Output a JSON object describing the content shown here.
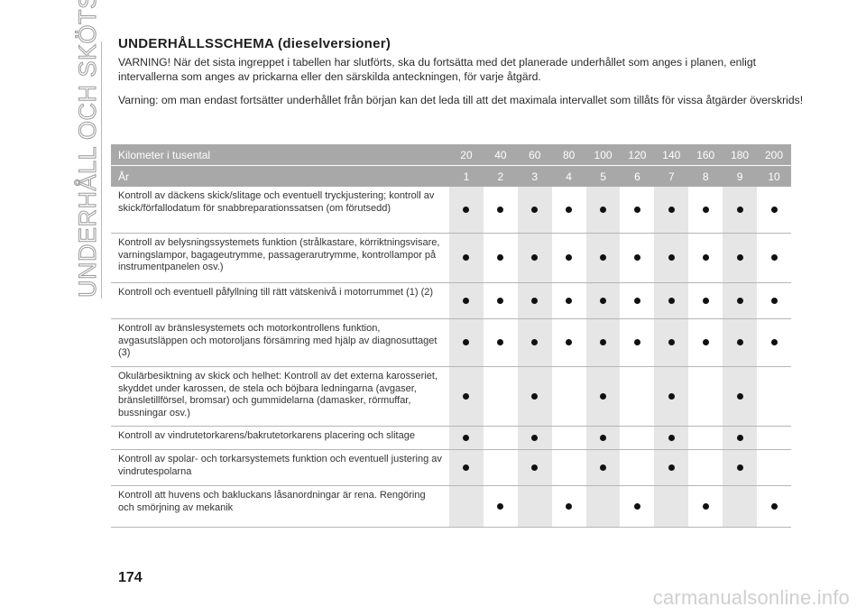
{
  "side_title": "UNDERHÅLL OCH SKÖTSEL",
  "heading": "UNDERHÅLLSSCHEMA (dieselversioner)",
  "paragraphs": [
    "VARNING! När det sista ingreppet i tabellen har slutförts, ska du fortsätta med det planerade underhållet som anges i planen, enligt intervallerna som anges av prickarna eller den särskilda anteckningen, för varje åtgärd.",
    "Varning: om man endast fortsätter underhållet från början kan det leda till att det maximala intervallet som tillåts för vissa åtgärder överskrids!"
  ],
  "table": {
    "header_km_label": "Kilometer i tusental",
    "km": [
      "20",
      "40",
      "60",
      "80",
      "100",
      "120",
      "140",
      "160",
      "180",
      "200"
    ],
    "header_year_label": "År",
    "years": [
      "1",
      "2",
      "3",
      "4",
      "5",
      "6",
      "7",
      "8",
      "9",
      "10"
    ],
    "rows": [
      {
        "desc": "Kontroll av däckens skick/slitage och eventuell tryckjustering; kontroll av skick/förfallodatum för snabbreparationssatsen (om förutsedd)",
        "marks": [
          1,
          1,
          1,
          1,
          1,
          1,
          1,
          1,
          1,
          1
        ]
      },
      {
        "desc": "Kontroll av belysningssystemets funktion (strålkastare, körriktningsvisare, varningslampor, bagageutrymme, passagerarutrymme, kontrollampor på instrumentpanelen osv.)",
        "marks": [
          1,
          1,
          1,
          1,
          1,
          1,
          1,
          1,
          1,
          1
        ]
      },
      {
        "desc": "Kontroll och eventuell påfyllning till rätt vätskenivå i motorrummet (1) (2)",
        "marks": [
          1,
          1,
          1,
          1,
          1,
          1,
          1,
          1,
          1,
          1
        ]
      },
      {
        "desc": "Kontroll av bränslesystemets och motorkontrollens funktion, avgasutsläppen och motoroljans försämring med hjälp av diagnosuttaget (3)",
        "marks": [
          1,
          1,
          1,
          1,
          1,
          1,
          1,
          1,
          1,
          1
        ]
      },
      {
        "desc": "Okulärbesiktning av skick och helhet: Kontroll av det externa karosseriet, skyddet under karossen, de stela och böjbara ledningarna (avgaser, bränsletillförsel, bromsar) och gummidelarna (damasker, rörmuffar, bussningar osv.)",
        "marks": [
          1,
          0,
          1,
          0,
          1,
          0,
          1,
          0,
          1,
          0
        ]
      },
      {
        "desc": "Kontroll av vindrutetorkarens/bakrutetorkarens placering och slitage",
        "marks": [
          1,
          0,
          1,
          0,
          1,
          0,
          1,
          0,
          1,
          0
        ]
      },
      {
        "desc": "Kontroll av spolar- och torkarsystemets funktion och eventuell justering av vindrutespolarna",
        "marks": [
          1,
          0,
          1,
          0,
          1,
          0,
          1,
          0,
          1,
          0
        ]
      },
      {
        "desc": "Kontroll att huvens och bakluckans låsanordningar är rena. Rengöring och smörjning av mekanik",
        "marks": [
          0,
          1,
          0,
          1,
          0,
          1,
          0,
          1,
          0,
          1
        ]
      }
    ]
  },
  "page_number": "174",
  "watermark": "carmanualsonline.info",
  "colors": {
    "header_bg": "#a8a8a8",
    "shade": "#e6e6e6",
    "dot": "#111111"
  },
  "icons": {
    "mark": "filled-circle-dot"
  }
}
